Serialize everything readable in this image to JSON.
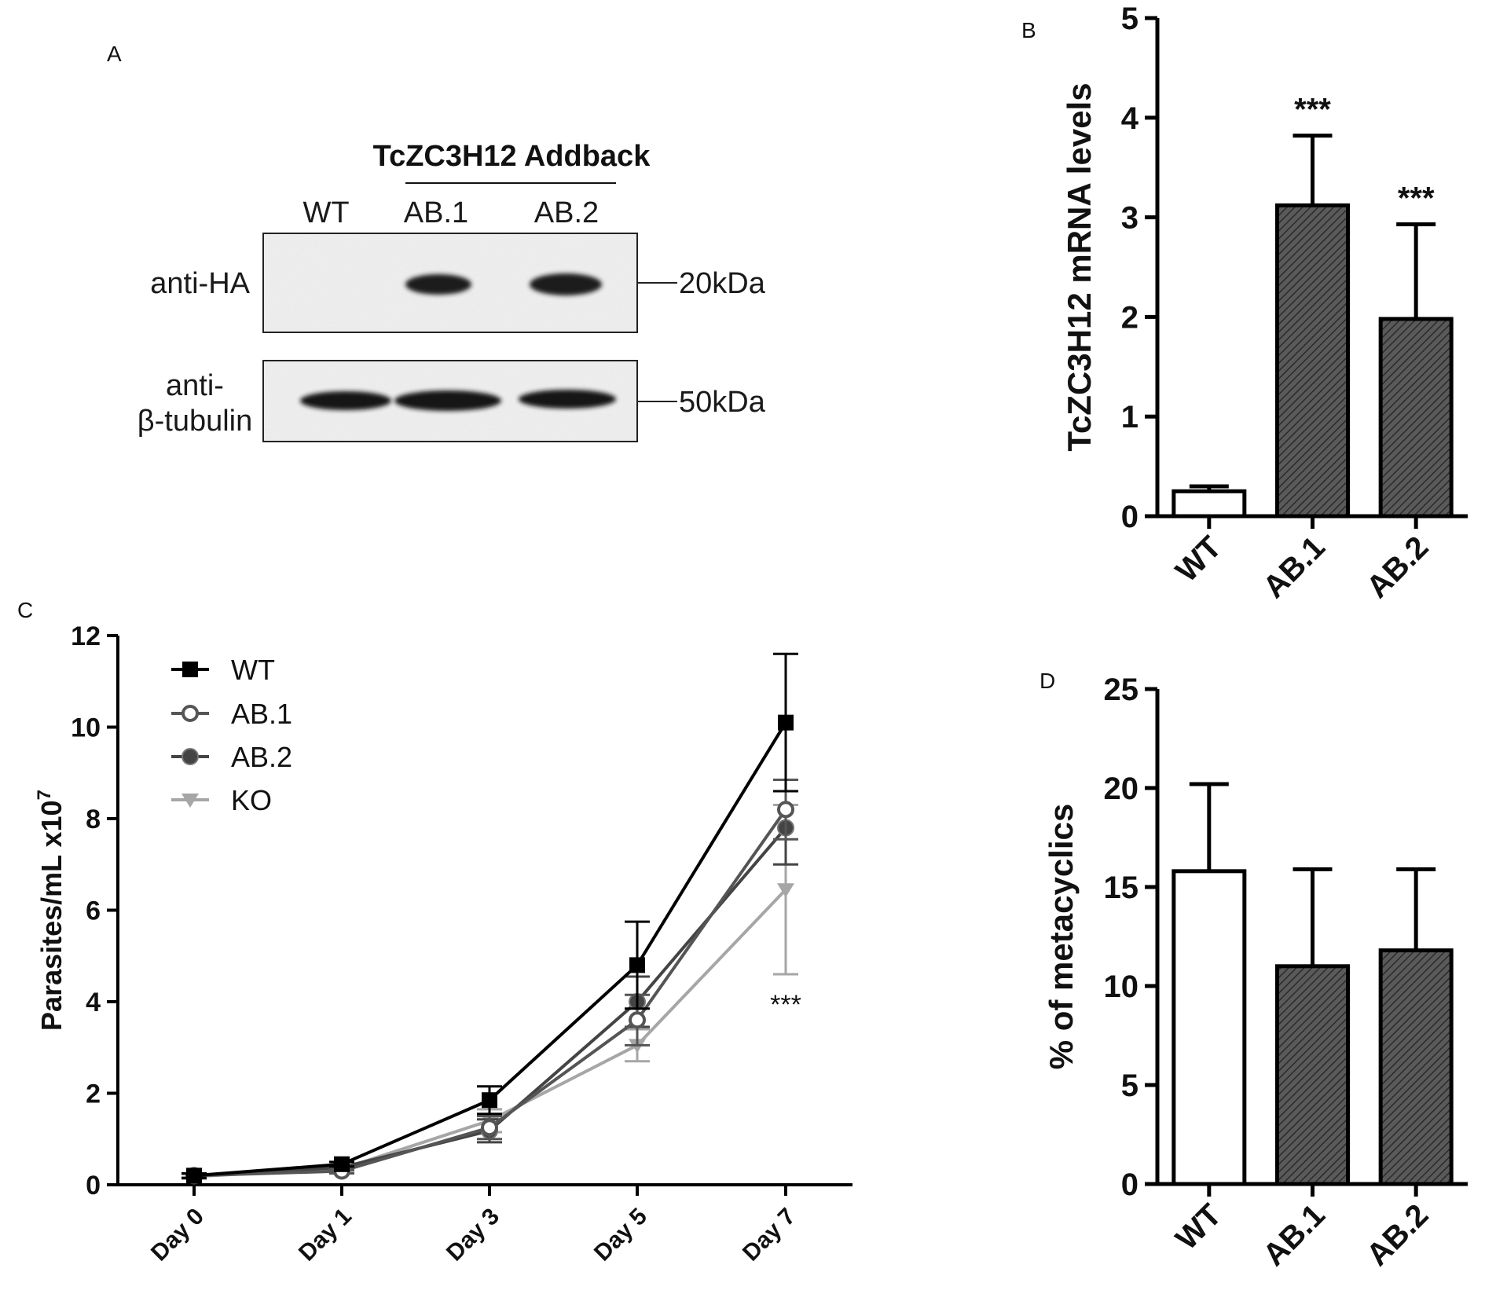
{
  "panels": {
    "a": "A",
    "b": "B",
    "c": "C",
    "d": "D"
  },
  "western_blot": {
    "group_header": "TcZC3H12 Addback",
    "lanes": [
      "WT",
      "AB.1",
      "AB.2"
    ],
    "rows": [
      {
        "label_lines": [
          "anti-HA"
        ],
        "marker": "20kDa"
      },
      {
        "label_lines": [
          "anti-",
          "β-tubulin"
        ],
        "marker": "50kDa"
      }
    ]
  },
  "chart_data": [
    {
      "panel": "B",
      "type": "bar",
      "categories": [
        "WT",
        "AB.1",
        "AB.2"
      ],
      "values": [
        0.25,
        3.12,
        1.98
      ],
      "error_upper": [
        0.3,
        3.82,
        2.93
      ],
      "significance": [
        "",
        "***",
        "***"
      ],
      "fills": [
        "white",
        "hatched",
        "hatched"
      ],
      "ylabel": "TcZC3H12 mRNA levels",
      "ylim": [
        0,
        5
      ],
      "yticks": [
        "0",
        "1",
        "2",
        "3",
        "4",
        "5"
      ],
      "grid": false
    },
    {
      "panel": "C",
      "type": "line",
      "categories": [
        "Day 0",
        "Day 1",
        "Day 3",
        "Day 5",
        "Day 7"
      ],
      "ylabel": "Parasites/mL x10",
      "ylabel_exponent": "7",
      "ylim": [
        0,
        12
      ],
      "yticks": [
        "0",
        "2",
        "4",
        "6",
        "8",
        "10",
        "12"
      ],
      "legend_position": "top-left",
      "grid": false,
      "annotation": "***",
      "series": [
        {
          "name": "WT",
          "values": [
            0.2,
            0.45,
            1.85,
            4.8,
            10.1
          ],
          "error": [
            0.05,
            0.05,
            0.3,
            0.95,
            1.5
          ],
          "marker": "square",
          "color": "#000000"
        },
        {
          "name": "AB.1",
          "values": [
            0.2,
            0.3,
            1.25,
            3.6,
            8.2
          ],
          "error": [
            0.05,
            0.05,
            0.25,
            0.55,
            0.65
          ],
          "marker": "open-circle",
          "color": "#555555"
        },
        {
          "name": "AB.2",
          "values": [
            0.2,
            0.38,
            1.18,
            4.0,
            7.8
          ],
          "error": [
            0.05,
            0.05,
            0.25,
            0.55,
            0.8
          ],
          "marker": "circle",
          "color": "#444444"
        },
        {
          "name": "KO",
          "values": [
            0.18,
            0.35,
            1.4,
            3.05,
            6.45
          ],
          "error": [
            0.05,
            0.05,
            0.25,
            0.35,
            1.85
          ],
          "marker": "triangle-down",
          "color": "#a6a6a6"
        }
      ]
    },
    {
      "panel": "D",
      "type": "bar",
      "categories": [
        "WT",
        "AB.1",
        "AB.2"
      ],
      "values": [
        15.8,
        11.0,
        11.8
      ],
      "error_upper": [
        20.2,
        15.9,
        15.9
      ],
      "fills": [
        "white",
        "hatched",
        "hatched"
      ],
      "ylabel": "% of metacyclics",
      "ylim": [
        0,
        25
      ],
      "yticks": [
        "0",
        "5",
        "10",
        "15",
        "20",
        "25"
      ],
      "grid": false
    }
  ]
}
